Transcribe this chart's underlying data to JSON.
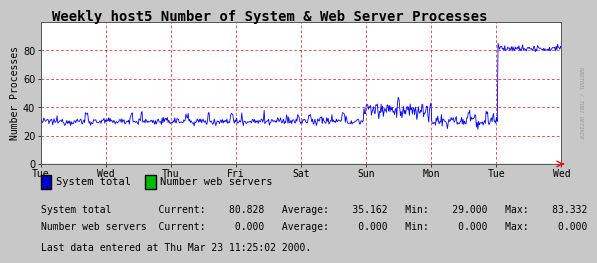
{
  "title": "Weekly host5 Number of System & Web Server Processes",
  "ylabel": "Number Processes",
  "yticks": [
    0,
    20,
    40,
    60,
    80
  ],
  "ylim": [
    0,
    100
  ],
  "x_day_labels": [
    "Tue",
    "Wed",
    "Thu",
    "Fri",
    "Sat",
    "Sun",
    "Mon",
    "Tue",
    "Wed"
  ],
  "bg_color": "#c8c8c8",
  "plot_bg_color": "#ffffff",
  "grid_color": "#cc0000",
  "line_color_system": "#0000ff",
  "line_color_web": "#00bb00",
  "legend_system_color": "#0000cc",
  "legend_web_color": "#00bb00",
  "legend_system_label": "System total",
  "legend_web_label": "Number web servers",
  "stats_line1_label": "System total",
  "stats_line1_current": "80.828",
  "stats_line1_average": "35.162",
  "stats_line1_min": "29.000",
  "stats_line1_max": "83.332",
  "stats_line2_label": "Number web servers",
  "stats_line2_current": "0.000",
  "stats_line2_average": "0.000",
  "stats_line2_min": "0.000",
  "stats_line2_max": "0.000",
  "footer": "Last data entered at Thu Mar 23 11:25:02 2000.",
  "title_fontsize": 10,
  "axis_fontsize": 7,
  "stats_fontsize": 7,
  "legend_fontsize": 7.5,
  "watermark": "RRDTOOL / TOBI OETIKER",
  "num_points": 700,
  "avg_base": 30,
  "noise_std": 1.2
}
